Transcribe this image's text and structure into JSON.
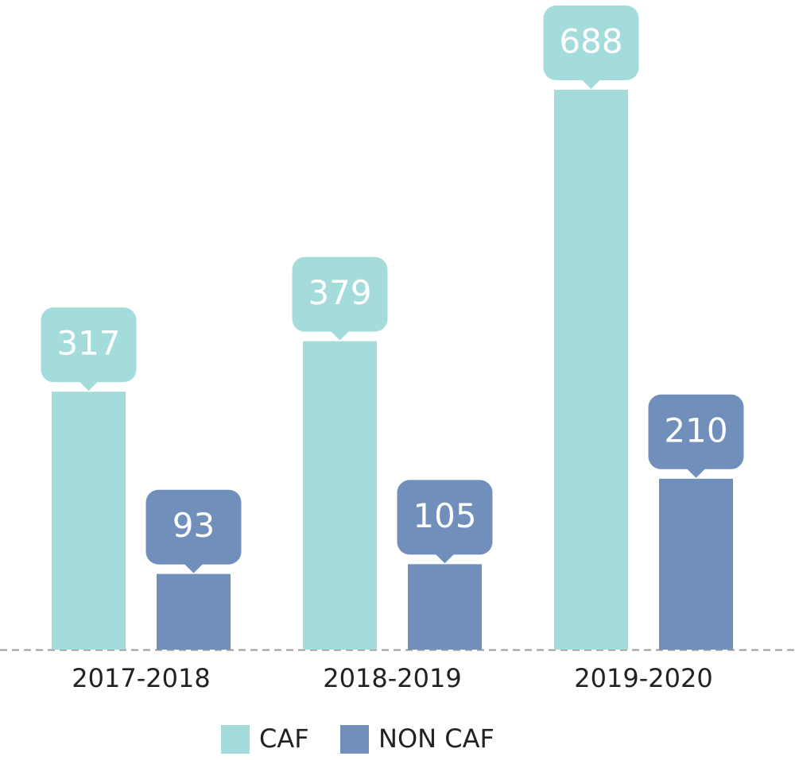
{
  "chart_data": {
    "type": "bar",
    "categories": [
      "2017-2018",
      "2018-2019",
      "2019-2020"
    ],
    "series": [
      {
        "name": "CAF",
        "color": "#a4dcdc",
        "values": [
          317,
          379,
          688
        ]
      },
      {
        "name": "NON CAF",
        "color": "#7090bb",
        "values": [
          93,
          105,
          210
        ]
      }
    ]
  }
}
